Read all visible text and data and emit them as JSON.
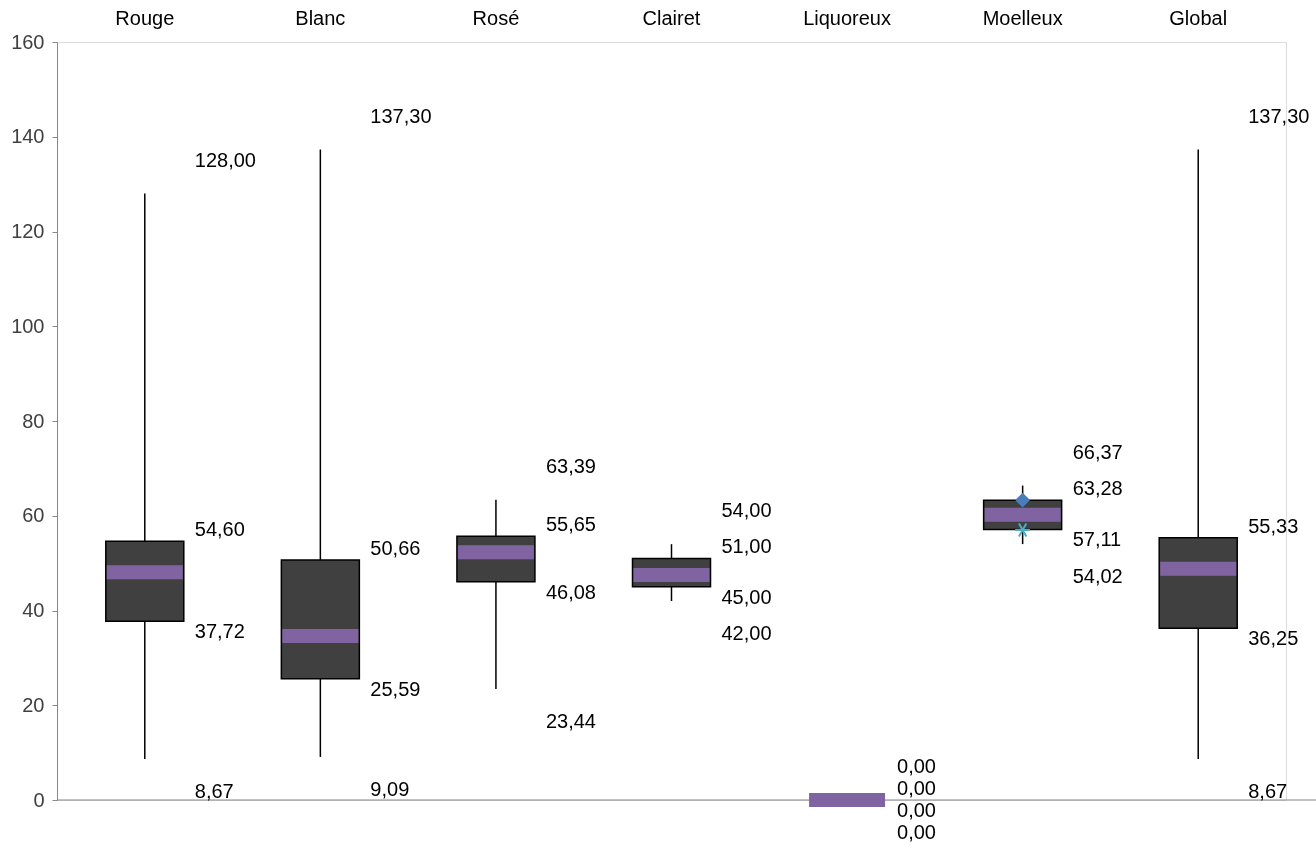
{
  "chart_data": {
    "type": "box",
    "categories": [
      "Rouge",
      "Blanc",
      "Rosé",
      "Clairet",
      "Liquoreux",
      "Moelleux",
      "Global"
    ],
    "boxes": [
      {
        "low": 8.67,
        "q1": 37.72,
        "median": 48.1,
        "q3": 54.6,
        "high": 128.0
      },
      {
        "low": 9.09,
        "q1": 25.59,
        "median": 34.6,
        "q3": 50.66,
        "high": 137.3
      },
      {
        "low": 23.44,
        "q1": 46.08,
        "median": 52.3,
        "q3": 55.65,
        "high": 63.39
      },
      {
        "low": 42.0,
        "q1": 45.0,
        "median": 47.5,
        "q3": 51.0,
        "high": 54.0
      },
      {
        "low": 0.0,
        "q1": 0.0,
        "median": 0.0,
        "q3": 0.0,
        "high": 0.0
      },
      {
        "low": 54.02,
        "q1": 57.11,
        "median": 60.2,
        "q3": 63.28,
        "high": 66.37
      },
      {
        "low": 8.67,
        "q1": 36.25,
        "median": 48.8,
        "q3": 55.33,
        "high": 137.3
      }
    ],
    "series": [
      {
        "type": "scatter",
        "x": [
          "Moelleux"
        ],
        "values": [
          63.3
        ],
        "color": "#4a7ebb",
        "marker": "diamond"
      },
      {
        "type": "scatter",
        "x": [
          "Moelleux"
        ],
        "values": [
          57.0
        ],
        "color": "#4bacc6",
        "marker": "cross"
      }
    ],
    "colors": [
      "#404040",
      "#404040",
      "#404040",
      "#404040",
      "#8064a2",
      "#404040",
      "#404040"
    ],
    "annotations": [
      {
        "text": "128,00",
        "x": "Rouge",
        "y": 128.0
      },
      {
        "text": "54,60",
        "x": "Rouge",
        "y": 54.6
      },
      {
        "text": "37,72",
        "x": "Rouge",
        "y": 37.72
      },
      {
        "text": "8,67",
        "x": "Rouge",
        "y": 8.67
      },
      {
        "text": "137,30",
        "x": "Blanc",
        "y": 137.3
      },
      {
        "text": "50,66",
        "x": "Blanc",
        "y": 50.66
      },
      {
        "text": "25,59",
        "x": "Blanc",
        "y": 25.59
      },
      {
        "text": "9,09",
        "x": "Blanc",
        "y": 9.09
      },
      {
        "text": "63,39",
        "x": "Rosé",
        "y": 63.39
      },
      {
        "text": "55,65",
        "x": "Rosé",
        "y": 55.65
      },
      {
        "text": "46,08",
        "x": "Rosé",
        "y": 46.08
      },
      {
        "text": "23,44",
        "x": "Rosé",
        "y": 23.44
      },
      {
        "text": "54,00",
        "x": "Clairet",
        "y": 54.0
      },
      {
        "text": "51,00",
        "x": "Clairet",
        "y": 51.0
      },
      {
        "text": "45,00",
        "x": "Clairet",
        "y": 45.0
      },
      {
        "text": "42,00",
        "x": "Clairet",
        "y": 42.0
      },
      {
        "text": "0,00",
        "x": "Liquoreux",
        "y": 0.0
      },
      {
        "text": "0,00",
        "x": "Liquoreux",
        "y": 0.0
      },
      {
        "text": "0,00",
        "x": "Liquoreux",
        "y": 0.0
      },
      {
        "text": "0,00",
        "x": "Liquoreux",
        "y": 0.0
      },
      {
        "text": "66,37",
        "x": "Moelleux",
        "y": 66.37
      },
      {
        "text": "63,28",
        "x": "Moelleux",
        "y": 63.28
      },
      {
        "text": "57,11",
        "x": "Moelleux",
        "y": 57.11
      },
      {
        "text": "54,02",
        "x": "Moelleux",
        "y": 54.02
      },
      {
        "text": "137,30",
        "x": "Global",
        "y": 137.3
      },
      {
        "text": "55,33",
        "x": "Global",
        "y": 55.33
      },
      {
        "text": "36,25",
        "x": "Global",
        "y": 36.25
      },
      {
        "text": "8,67",
        "x": "Global",
        "y": 8.67
      }
    ],
    "grid": false,
    "ylim": [
      0,
      160
    ],
    "yticks": [
      0,
      20,
      40,
      60,
      80,
      100,
      120,
      140,
      160
    ]
  }
}
